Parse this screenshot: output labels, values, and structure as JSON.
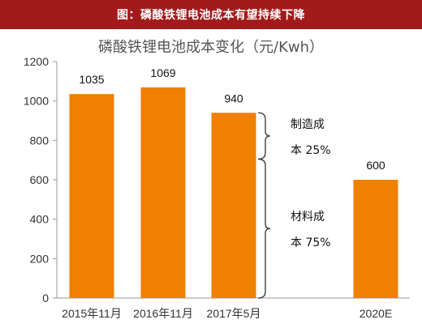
{
  "header": {
    "title": "图：磷酸铁锂电池成本有望持续下降"
  },
  "chart_data": {
    "type": "bar",
    "title": "磷酸铁锂电池成本变化（元/Kwh）",
    "categories": [
      "2015年11月",
      "2016年11月",
      "2017年5月",
      "2020E"
    ],
    "values": [
      1035,
      1069,
      940,
      600
    ],
    "data_labels": [
      "1035",
      "1069",
      "940",
      "600"
    ],
    "ylim": [
      0,
      1200
    ],
    "yticks": [
      "0",
      "200",
      "400",
      "600",
      "800",
      "1000",
      "1200"
    ],
    "grid": false,
    "bar_color": "#f08000",
    "annotations": [
      {
        "line1": "制造成",
        "line2": "本 25%",
        "from": 940,
        "to": 705
      },
      {
        "line1": "材料成",
        "line2": "本 75%",
        "from": 705,
        "to": 0
      }
    ]
  }
}
